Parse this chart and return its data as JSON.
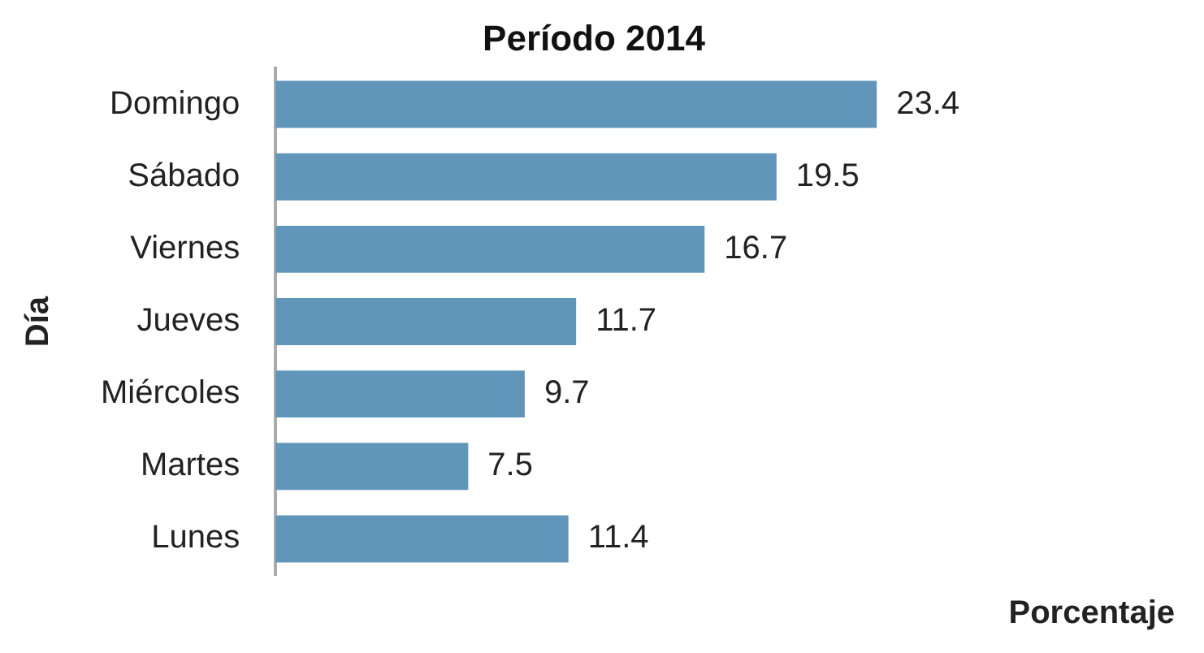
{
  "chart_data": {
    "type": "bar",
    "orientation": "horizontal",
    "title": "Período 2014",
    "ylabel": "Día",
    "xlabel": "Porcentaje",
    "categories": [
      "Domingo",
      "Sábado",
      "Viernes",
      "Jueves",
      "Miércoles",
      "Martes",
      "Lunes"
    ],
    "values": [
      23.4,
      19.5,
      16.7,
      11.7,
      9.7,
      7.5,
      11.4
    ],
    "color": "#6096ba",
    "data_labels": true,
    "grid": false,
    "legend": false,
    "tick_labels": "y"
  }
}
